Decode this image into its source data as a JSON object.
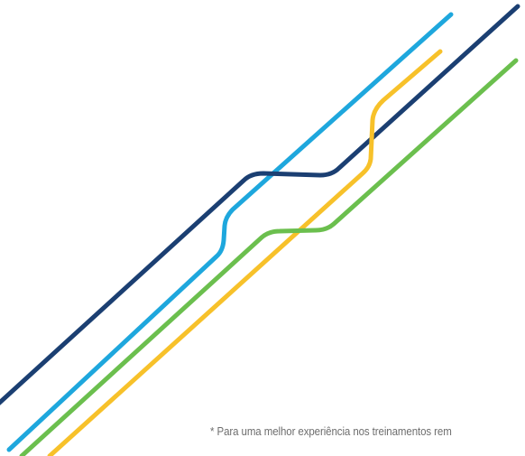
{
  "footnote": {
    "text": "* Para uma melhor experiência nos treinamentos rem"
  },
  "lines": [
    {
      "name": "navy-line",
      "color": "#1b3f72"
    },
    {
      "name": "cyan-line",
      "color": "#1ea7dd"
    },
    {
      "name": "yellow-line",
      "color": "#f7c12a"
    },
    {
      "name": "green-line",
      "color": "#6bbf4e"
    }
  ]
}
